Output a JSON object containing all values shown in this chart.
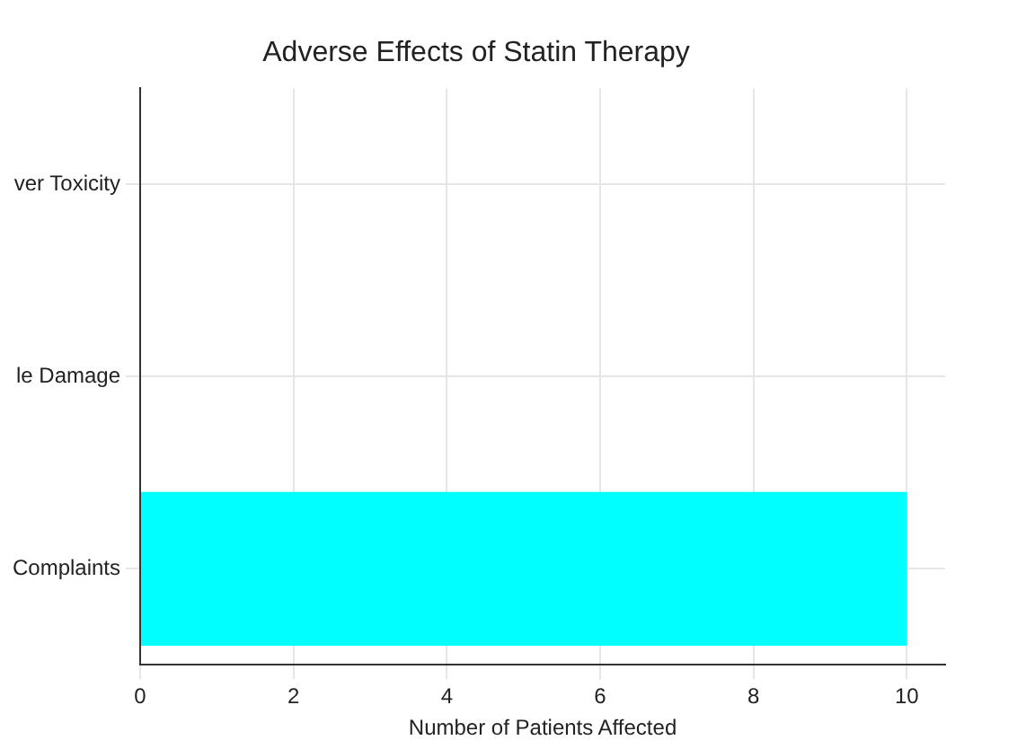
{
  "chart_data": {
    "type": "bar",
    "orientation": "horizontal",
    "title": "Adverse Effects of Statin Therapy",
    "xlabel": "Number of Patients Affected",
    "categories": [
      "ver Toxicity",
      "le Damage",
      "Complaints"
    ],
    "values": [
      0,
      0,
      10
    ],
    "color": "#00ffff",
    "xlim": [
      0,
      10.5
    ],
    "xticks": [
      0,
      2,
      4,
      6,
      8,
      10
    ],
    "grid": true
  }
}
